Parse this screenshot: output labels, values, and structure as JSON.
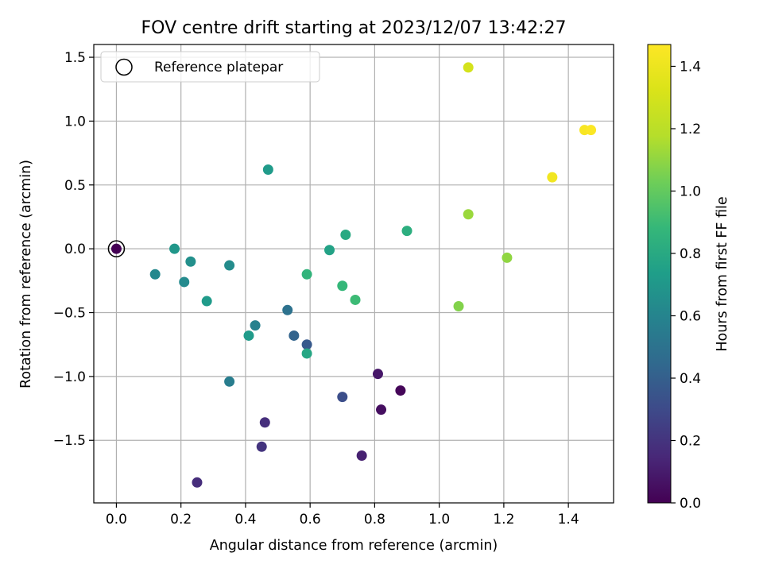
{
  "chart_data": {
    "type": "scatter",
    "title": "FOV centre drift starting at 2023/12/07 13:42:27",
    "xlabel": "Angular distance from reference (arcmin)",
    "ylabel": "Rotation from reference (arcmin)",
    "xlim": [
      -0.07,
      1.54
    ],
    "ylim": [
      -1.99,
      1.6
    ],
    "xticks": [
      0.0,
      0.2,
      0.4,
      0.6,
      0.8,
      1.0,
      1.2,
      1.4
    ],
    "xtick_labels": [
      "0.0",
      "0.2",
      "0.4",
      "0.6",
      "0.8",
      "1.0",
      "1.2",
      "1.4"
    ],
    "yticks": [
      -1.5,
      -1.0,
      -0.5,
      0.0,
      0.5,
      1.0,
      1.5
    ],
    "ytick_labels": [
      "−1.5",
      "−1.0",
      "−0.5",
      "0.0",
      "0.5",
      "1.0",
      "1.5"
    ],
    "grid": true,
    "legend": {
      "position": "upper-left",
      "entries": [
        {
          "label": "Reference platepar",
          "marker": "open-circle"
        }
      ]
    },
    "colorbar": {
      "label": "Hours from first FF file",
      "colormap": "viridis",
      "range": [
        0.0,
        1.47
      ],
      "ticks": [
        0.0,
        0.2,
        0.4,
        0.6,
        0.8,
        1.0,
        1.2,
        1.4
      ],
      "tick_labels": [
        "0.0",
        "0.2",
        "0.4",
        "0.6",
        "0.8",
        "1.0",
        "1.2",
        "1.4"
      ]
    },
    "reference_point": {
      "x": 0.0,
      "y": 0.0
    },
    "points": [
      {
        "x": 0.0,
        "y": 0.0,
        "c": 0.0
      },
      {
        "x": 0.88,
        "y": -1.11,
        "c": 0.02
      },
      {
        "x": 0.82,
        "y": -1.26,
        "c": 0.05
      },
      {
        "x": 0.81,
        "y": -0.98,
        "c": 0.08
      },
      {
        "x": 0.76,
        "y": -1.62,
        "c": 0.12
      },
      {
        "x": 0.25,
        "y": -1.83,
        "c": 0.17
      },
      {
        "x": 0.46,
        "y": -1.36,
        "c": 0.18
      },
      {
        "x": 0.45,
        "y": -1.55,
        "c": 0.2
      },
      {
        "x": 0.7,
        "y": -1.16,
        "c": 0.32
      },
      {
        "x": 0.59,
        "y": -0.75,
        "c": 0.37
      },
      {
        "x": 0.55,
        "y": -0.68,
        "c": 0.42
      },
      {
        "x": 0.53,
        "y": -0.48,
        "c": 0.5
      },
      {
        "x": 0.35,
        "y": -1.04,
        "c": 0.56
      },
      {
        "x": 0.43,
        "y": -0.6,
        "c": 0.58
      },
      {
        "x": 0.12,
        "y": -0.2,
        "c": 0.62
      },
      {
        "x": 0.21,
        "y": -0.26,
        "c": 0.63
      },
      {
        "x": 0.35,
        "y": -0.13,
        "c": 0.64
      },
      {
        "x": 0.23,
        "y": -0.1,
        "c": 0.66
      },
      {
        "x": 0.18,
        "y": 0.0,
        "c": 0.7
      },
      {
        "x": 0.28,
        "y": -0.41,
        "c": 0.72
      },
      {
        "x": 0.41,
        "y": -0.68,
        "c": 0.72
      },
      {
        "x": 0.47,
        "y": 0.62,
        "c": 0.72
      },
      {
        "x": 0.66,
        "y": -0.01,
        "c": 0.76
      },
      {
        "x": 0.59,
        "y": -0.82,
        "c": 0.78
      },
      {
        "x": 0.71,
        "y": 0.11,
        "c": 0.8
      },
      {
        "x": 0.9,
        "y": 0.14,
        "c": 0.83
      },
      {
        "x": 0.59,
        "y": -0.2,
        "c": 0.86
      },
      {
        "x": 0.7,
        "y": -0.29,
        "c": 0.88
      },
      {
        "x": 0.74,
        "y": -0.4,
        "c": 0.9
      },
      {
        "x": 1.06,
        "y": -0.45,
        "c": 1.07
      },
      {
        "x": 1.21,
        "y": -0.07,
        "c": 1.1
      },
      {
        "x": 1.09,
        "y": 0.27,
        "c": 1.12
      },
      {
        "x": 1.09,
        "y": 1.42,
        "c": 1.3
      },
      {
        "x": 1.35,
        "y": 0.56,
        "c": 1.42
      },
      {
        "x": 1.45,
        "y": 0.93,
        "c": 1.45
      },
      {
        "x": 1.47,
        "y": 0.93,
        "c": 1.46
      }
    ]
  }
}
